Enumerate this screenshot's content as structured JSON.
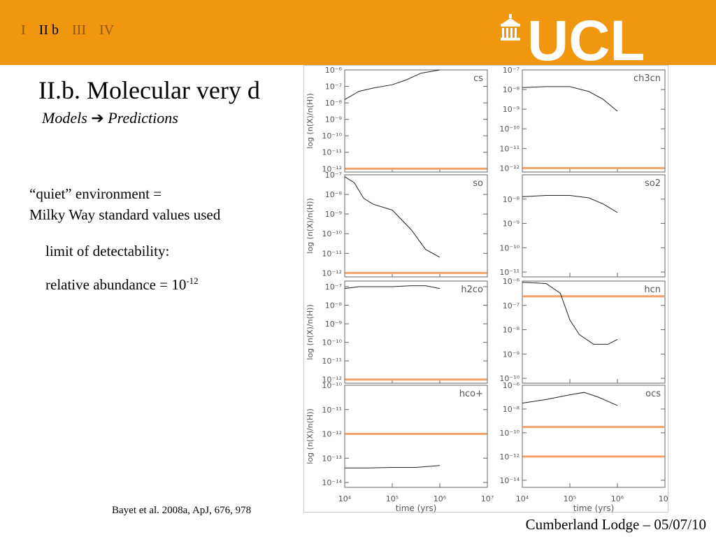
{
  "header": {
    "nav": [
      "I",
      "II b",
      "III",
      "IV"
    ],
    "active_index": 1,
    "logo_text": "UCL",
    "bg_color": "#f0960f"
  },
  "title": "II.b. Molecular very d",
  "subtitle": {
    "part1": "Models",
    "part2": "Predictions",
    "arrow_icon": "right-arrow-icon"
  },
  "text": {
    "line1": "“quiet” environment =",
    "line2": "Milky Way standard values used",
    "line3": "limit of detectability:",
    "line4_base": "relative abundance = 10",
    "line4_sup": "-12"
  },
  "citation": "Bayet et al. 2008a, ApJ, 676, 978",
  "footer": "Cumberland Lodge – 05/07/10",
  "chart_data": {
    "type": "line",
    "xlabel": "time (yrs)",
    "ylabel": "log (n(X)/n(H))",
    "x_scale": "log",
    "xlim": [
      10000,
      10000000
    ],
    "x_ticks": [
      4,
      5,
      6,
      7
    ],
    "detection_limit": 1e-12,
    "detection_color": "#f4a26a",
    "curve_color": "#222222",
    "panels": [
      {
        "name": "cs",
        "ylim_exp": [
          -12.2,
          -6
        ],
        "yticks": [
          -6,
          -7,
          -8,
          -9,
          -10,
          -11,
          -12
        ],
        "x": [
          4,
          4.3,
          4.6,
          5,
          5.3,
          5.6,
          6
        ],
        "y": [
          -7.8,
          -7.3,
          -7.1,
          -6.9,
          -6.6,
          -6.2,
          -6.0
        ]
      },
      {
        "name": "ch3cn",
        "ylim_exp": [
          -12.2,
          -7
        ],
        "yticks": [
          -7,
          -8,
          -9,
          -10,
          -11,
          -12
        ],
        "x": [
          4,
          4.5,
          5,
          5.4,
          5.7,
          6
        ],
        "y": [
          -7.9,
          -7.85,
          -7.85,
          -8.1,
          -8.5,
          -9.1
        ]
      },
      {
        "name": "so",
        "ylim_exp": [
          -12.2,
          -7
        ],
        "yticks": [
          -7,
          -8,
          -9,
          -10,
          -11,
          -12
        ],
        "x": [
          4,
          4.2,
          4.4,
          4.6,
          5,
          5.4,
          5.7,
          6
        ],
        "y": [
          -7.1,
          -7.4,
          -8.2,
          -8.5,
          -8.8,
          -9.8,
          -10.8,
          -11.2
        ]
      },
      {
        "name": "so2",
        "ylim_exp": [
          -11.2,
          -7
        ],
        "yticks": [
          -8,
          -9,
          -10,
          -11
        ],
        "x": [
          4,
          4.5,
          5,
          5.4,
          5.7,
          6
        ],
        "y": [
          -7.9,
          -7.85,
          -7.85,
          -7.95,
          -8.2,
          -8.55
        ]
      },
      {
        "name": "h2co",
        "ylim_exp": [
          -12.2,
          -6.7
        ],
        "yticks": [
          -7,
          -8,
          -9,
          -10,
          -11,
          -12
        ],
        "x": [
          4,
          4.3,
          4.7,
          5,
          5.4,
          5.7,
          6
        ],
        "y": [
          -7.1,
          -7.0,
          -7.0,
          -7.0,
          -6.95,
          -6.95,
          -7.1
        ]
      },
      {
        "name": "hcn",
        "ylim_exp": [
          -10.2,
          -6
        ],
        "yticks": [
          -6,
          -7,
          -8,
          -9,
          -10
        ],
        "x": [
          4,
          4.5,
          4.8,
          5,
          5.2,
          5.5,
          5.8,
          6
        ],
        "y": [
          -6.05,
          -6.1,
          -6.5,
          -7.6,
          -8.2,
          -8.6,
          -8.6,
          -8.4
        ]
      },
      {
        "name": "hco+",
        "ylim_exp": [
          -14.2,
          -10
        ],
        "yticks": [
          -10,
          -11,
          -12,
          -13,
          -14
        ],
        "x": [
          4,
          4.5,
          5,
          5.5,
          6
        ],
        "y": [
          -13.4,
          -13.4,
          -13.38,
          -13.38,
          -13.3
        ]
      },
      {
        "name": "ocs",
        "ylim_exp": [
          -14.6,
          -6
        ],
        "yticks": [
          -6,
          -8,
          -10,
          -12,
          -14
        ],
        "x": [
          4,
          4.5,
          5,
          5.3,
          5.6,
          6
        ],
        "y": [
          -7.5,
          -7.2,
          -6.8,
          -6.6,
          -7.0,
          -7.7
        ]
      }
    ]
  }
}
